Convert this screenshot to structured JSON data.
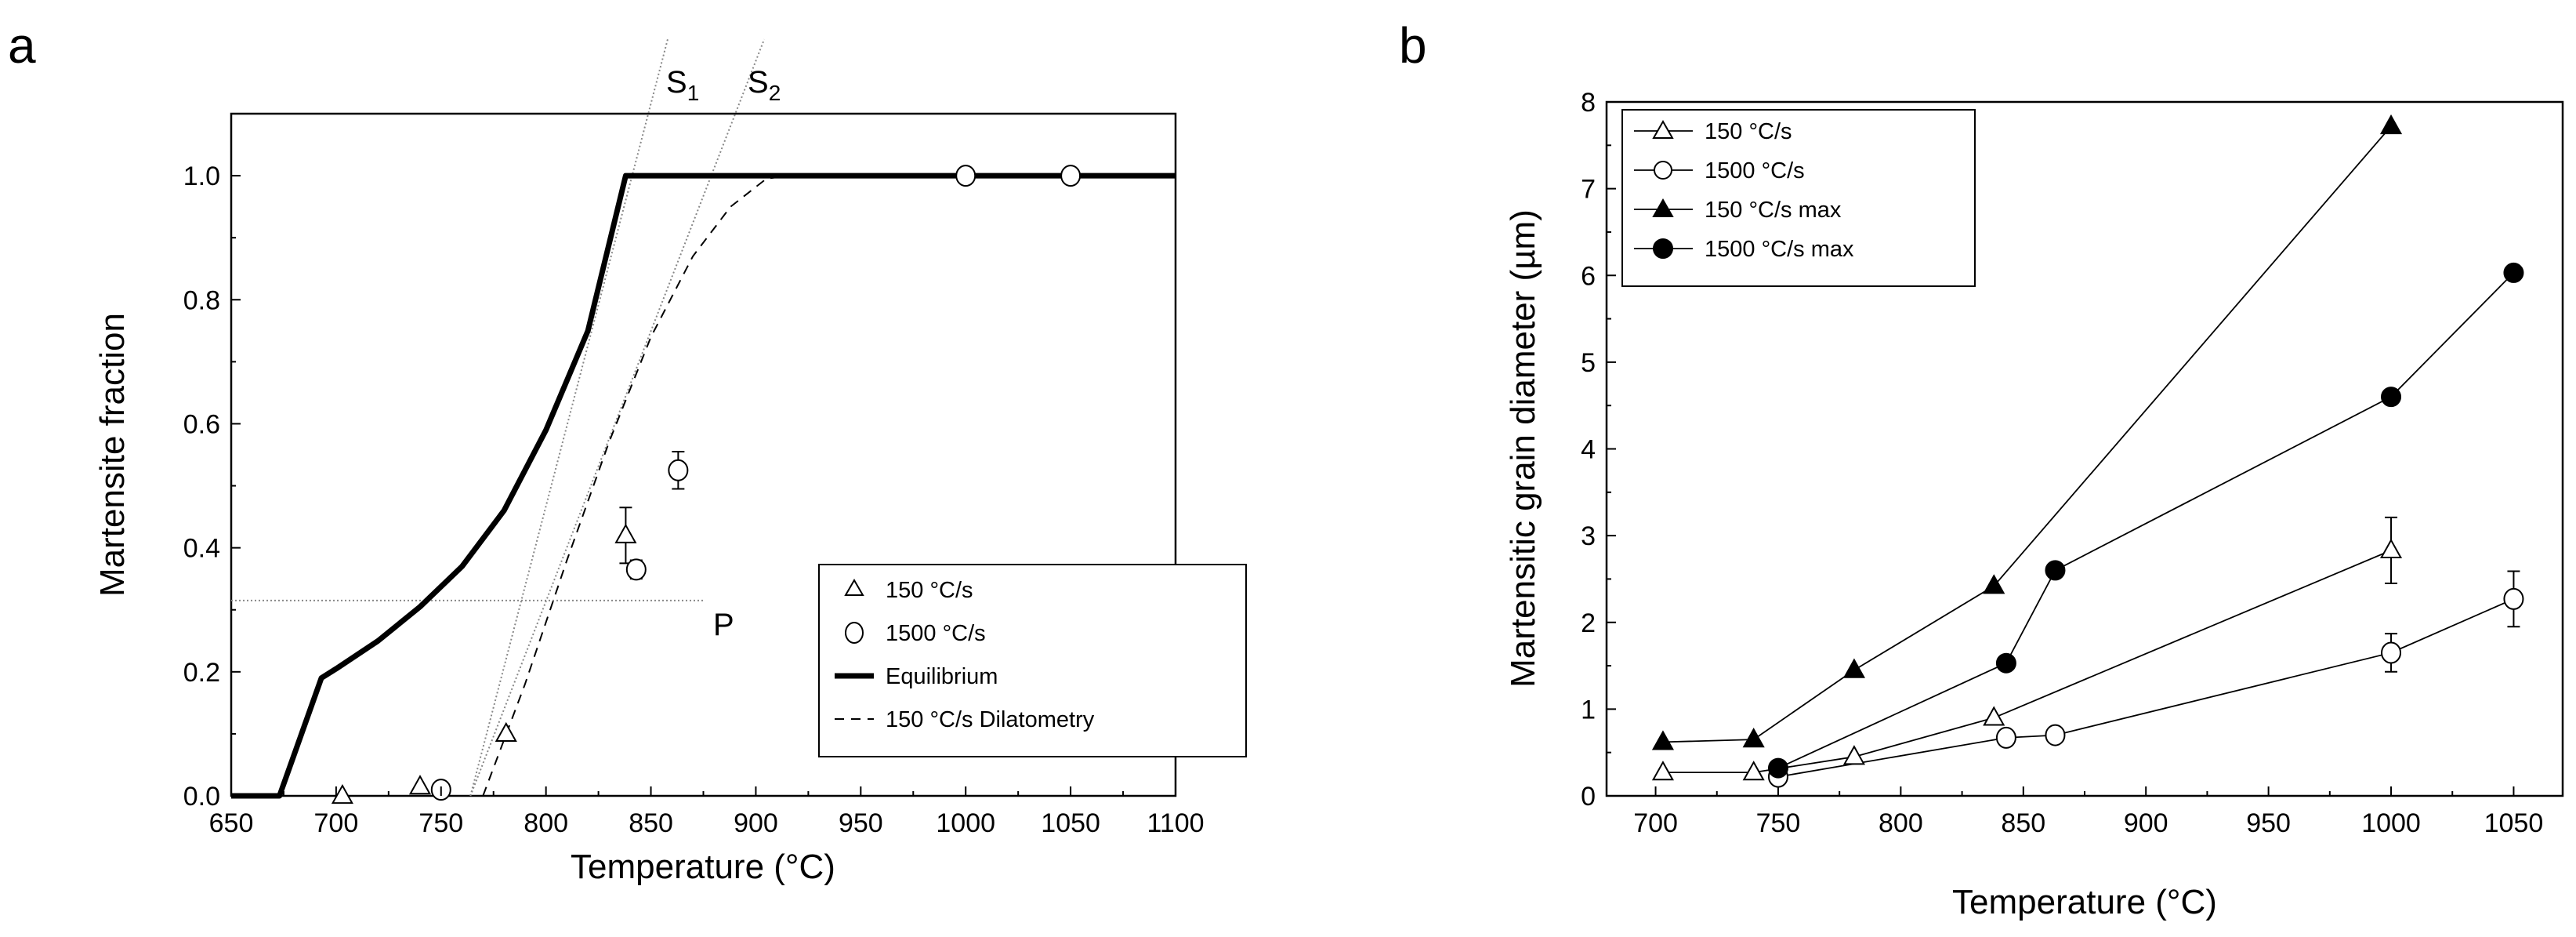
{
  "panels": {
    "a": {
      "label": "a"
    },
    "b": {
      "label": "b"
    }
  },
  "chart_data": [
    {
      "id": "a",
      "type": "scatter",
      "panel_label": "a",
      "title": "",
      "xlabel": "Temperature (°C)",
      "ylabel": "Martensite fraction",
      "xlim": [
        650,
        1100
      ],
      "ylim": [
        0.0,
        1.1
      ],
      "xticks": [
        650,
        700,
        750,
        800,
        850,
        900,
        950,
        1000,
        1050,
        1100
      ],
      "xtick_labels": [
        "650",
        "700",
        "750",
        "800",
        "850",
        "900",
        "950",
        "1000",
        "1050",
        "1100"
      ],
      "yticks": [
        0.0,
        0.2,
        0.4,
        0.6,
        0.8,
        1.0
      ],
      "ytick_labels": [
        "0.0",
        "0.2",
        "0.4",
        "0.6",
        "0.8",
        "1.0"
      ],
      "grid": false,
      "legend": {
        "position": "lower-right",
        "entries": [
          "150 °C/s",
          "1500 °C/s",
          "Equilibrium",
          "150 °C/s Dilatometry"
        ]
      },
      "series": [
        {
          "name": "150 °C/s",
          "kind": "markers",
          "marker": "triangle-open",
          "points": [
            {
              "x": 703,
              "y": 0.0,
              "err": 0
            },
            {
              "x": 740,
              "y": 0.015,
              "err": 0
            },
            {
              "x": 781,
              "y": 0.1,
              "err": 0
            },
            {
              "x": 838,
              "y": 0.42,
              "err": 0.045
            }
          ]
        },
        {
          "name": "1500 °C/s",
          "kind": "markers",
          "marker": "circle-open",
          "points": [
            {
              "x": 750,
              "y": 0.01,
              "err": 0
            },
            {
              "x": 843,
              "y": 0.365,
              "err": 0.015
            },
            {
              "x": 863,
              "y": 0.525,
              "err": 0.03
            },
            {
              "x": 1000,
              "y": 1.0,
              "err": 0
            },
            {
              "x": 1050,
              "y": 1.0,
              "err": 0
            }
          ]
        },
        {
          "name": "Equilibrium",
          "kind": "line",
          "style": "solid-thick",
          "points": [
            {
              "x": 650,
              "y": 0.0
            },
            {
              "x": 673,
              "y": 0.0
            },
            {
              "x": 693,
              "y": 0.19
            },
            {
              "x": 700,
              "y": 0.205
            },
            {
              "x": 720,
              "y": 0.25
            },
            {
              "x": 740,
              "y": 0.305
            },
            {
              "x": 760,
              "y": 0.37
            },
            {
              "x": 780,
              "y": 0.46
            },
            {
              "x": 800,
              "y": 0.59
            },
            {
              "x": 820,
              "y": 0.75
            },
            {
              "x": 838,
              "y": 1.0
            },
            {
              "x": 1100,
              "y": 1.0
            }
          ]
        },
        {
          "name": "150 °C/s Dilatometry",
          "kind": "line",
          "style": "dashed",
          "points": [
            {
              "x": 770,
              "y": 0.0
            },
            {
              "x": 790,
              "y": 0.18
            },
            {
              "x": 810,
              "y": 0.38
            },
            {
              "x": 830,
              "y": 0.57
            },
            {
              "x": 850,
              "y": 0.74
            },
            {
              "x": 870,
              "y": 0.87
            },
            {
              "x": 888,
              "y": 0.95
            },
            {
              "x": 905,
              "y": 0.995
            },
            {
              "x": 915,
              "y": 1.0
            }
          ]
        }
      ],
      "reference_lines": [
        {
          "name": "S1",
          "kind": "dotted",
          "points": [
            {
              "x": 764,
              "y": 0.0
            },
            {
              "x": 858,
              "y": 1.22
            }
          ]
        },
        {
          "name": "S2",
          "kind": "dotted",
          "points": [
            {
              "x": 764,
              "y": 0.0
            },
            {
              "x": 904,
              "y": 1.22
            }
          ]
        },
        {
          "name": "P",
          "kind": "dotted",
          "points": [
            {
              "x": 650,
              "y": 0.315
            },
            {
              "x": 875,
              "y": 0.315
            }
          ]
        }
      ],
      "annotations": {
        "s1": {
          "base": "S",
          "sub": "1"
        },
        "s2": {
          "base": "S",
          "sub": "2"
        },
        "p": "P"
      }
    },
    {
      "id": "b",
      "type": "line",
      "panel_label": "b",
      "title": "",
      "xlabel": "Temperature (°C)",
      "ylabel": "Martensitic grain diameter (µm)",
      "xlim": [
        680,
        1070
      ],
      "ylim": [
        0,
        8
      ],
      "xticks": [
        700,
        750,
        800,
        850,
        900,
        950,
        1000,
        1050
      ],
      "xtick_labels": [
        "700",
        "750",
        "800",
        "850",
        "900",
        "950",
        "1000",
        "1050"
      ],
      "yticks": [
        0,
        1,
        2,
        3,
        4,
        5,
        6,
        7,
        8
      ],
      "ytick_labels": [
        "0",
        "1",
        "2",
        "3",
        "4",
        "5",
        "6",
        "7",
        "8"
      ],
      "grid": false,
      "legend": {
        "position": "top-left",
        "entries": [
          "150 °C/s",
          "1500 °C/s",
          "150 °C/s max",
          "1500 °C/s max"
        ]
      },
      "series": [
        {
          "name": "150 °C/s",
          "marker": "triangle-open",
          "points": [
            {
              "x": 703,
              "y": 0.27,
              "err": 0
            },
            {
              "x": 740,
              "y": 0.27,
              "err": 0
            },
            {
              "x": 781,
              "y": 0.45,
              "err": 0
            },
            {
              "x": 838,
              "y": 0.9,
              "err": 0
            },
            {
              "x": 1000,
              "y": 2.83,
              "err": 0.38
            }
          ]
        },
        {
          "name": "1500 °C/s",
          "marker": "circle-open",
          "points": [
            {
              "x": 750,
              "y": 0.22,
              "err": 0
            },
            {
              "x": 843,
              "y": 0.67,
              "err": 0
            },
            {
              "x": 863,
              "y": 0.7,
              "err": 0
            },
            {
              "x": 1000,
              "y": 1.65,
              "err": 0.22
            },
            {
              "x": 1050,
              "y": 2.27,
              "err": 0.32
            }
          ]
        },
        {
          "name": "150 °C/s max",
          "marker": "triangle-filled",
          "points": [
            {
              "x": 703,
              "y": 0.62,
              "err": 0
            },
            {
              "x": 740,
              "y": 0.65,
              "err": 0
            },
            {
              "x": 781,
              "y": 1.45,
              "err": 0
            },
            {
              "x": 838,
              "y": 2.42,
              "err": 0
            },
            {
              "x": 1000,
              "y": 7.72,
              "err": 0
            }
          ]
        },
        {
          "name": "1500 °C/s max",
          "marker": "circle-filled",
          "points": [
            {
              "x": 750,
              "y": 0.32,
              "err": 0
            },
            {
              "x": 843,
              "y": 1.53,
              "err": 0
            },
            {
              "x": 863,
              "y": 2.6,
              "err": 0
            },
            {
              "x": 1000,
              "y": 4.6,
              "err": 0
            },
            {
              "x": 1050,
              "y": 6.03,
              "err": 0
            }
          ]
        }
      ]
    }
  ]
}
